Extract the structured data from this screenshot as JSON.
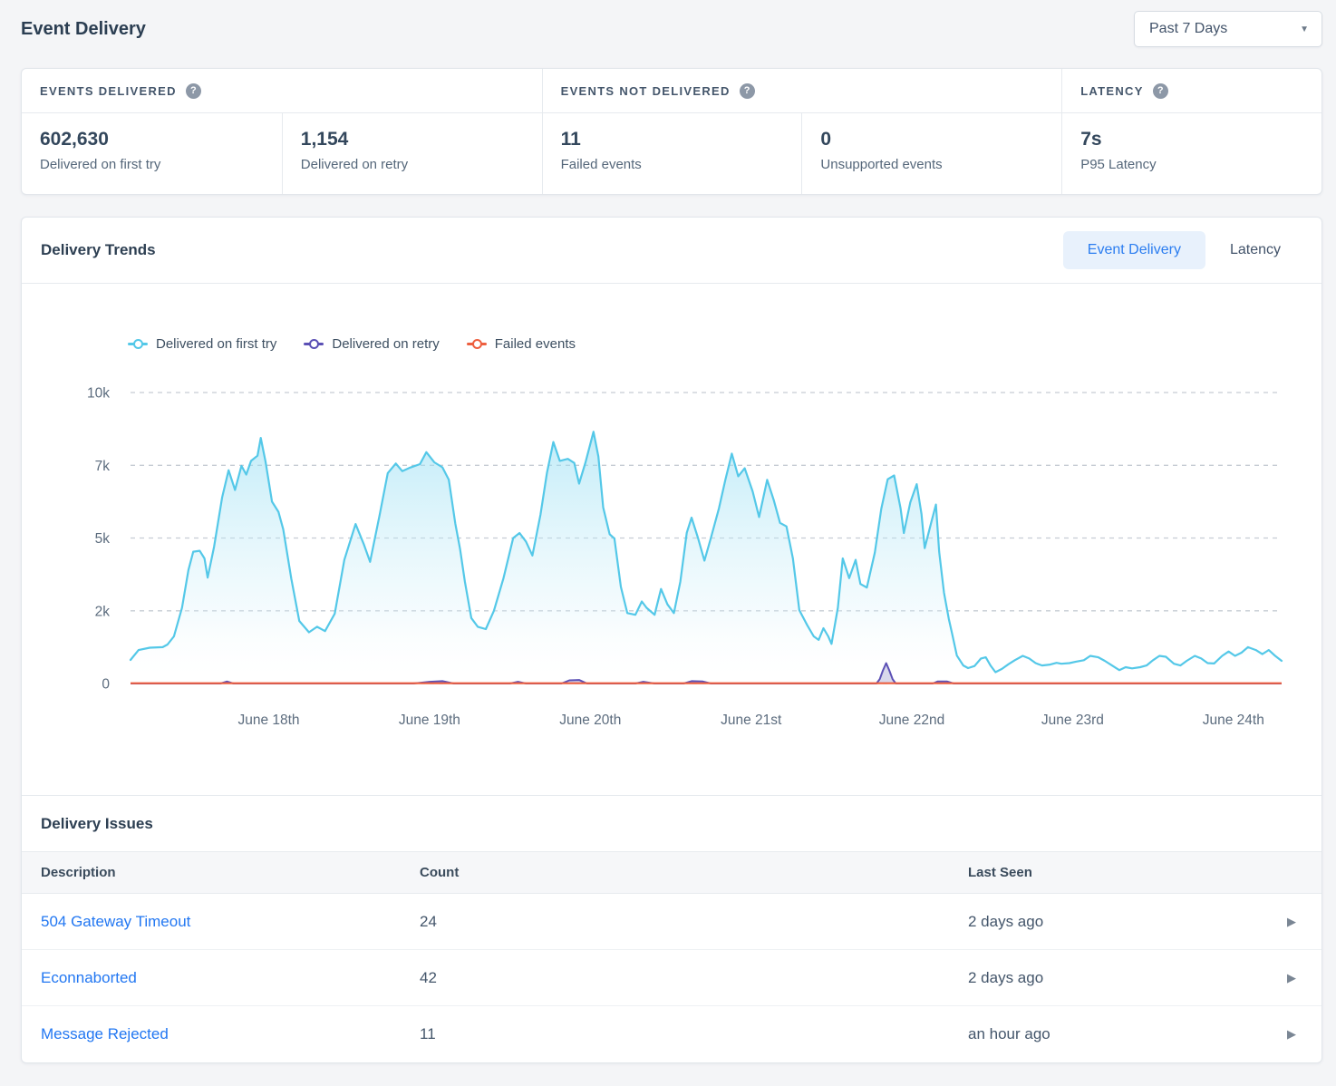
{
  "page": {
    "title": "Event Delivery"
  },
  "icons": {
    "help": "?",
    "caret": "▼",
    "chevron_right": "▶"
  },
  "time_range": {
    "selected": "Past 7 Days"
  },
  "stats": {
    "groups": [
      {
        "label": "EVENTS DELIVERED"
      },
      {
        "label": "EVENTS NOT DELIVERED"
      },
      {
        "label": "LATENCY"
      }
    ],
    "metrics": [
      {
        "value": "602,630",
        "label": "Delivered on first try"
      },
      {
        "value": "1,154",
        "label": "Delivered on retry"
      },
      {
        "value": "11",
        "label": "Failed events"
      },
      {
        "value": "0",
        "label": "Unsupported events"
      },
      {
        "value": "7s",
        "label": "P95 Latency"
      }
    ]
  },
  "trends": {
    "title": "Delivery Trends",
    "tabs": [
      {
        "label": "Event Delivery",
        "active": true
      },
      {
        "label": "Latency",
        "active": false
      }
    ],
    "legend": [
      {
        "label": "Delivered on first try",
        "color": "#54c8e8"
      },
      {
        "label": "Delivered on retry",
        "color": "#5b50b5"
      },
      {
        "label": "Failed events",
        "color": "#ed5f3f"
      }
    ]
  },
  "chart_data": {
    "type": "area",
    "title": "Delivery Trends",
    "x_axis": {
      "labels": [
        "June 18th",
        "June 19th",
        "June 20th",
        "June 21st",
        "June 22nd",
        "June 23rd",
        "June 24th"
      ],
      "positions_day": [
        18,
        19,
        20,
        21,
        22,
        23,
        24
      ]
    },
    "y_axis": {
      "ticks": [
        0,
        2500,
        5000,
        7500,
        10000
      ],
      "tick_labels": [
        "0",
        "2k",
        "5k",
        "7k",
        "10k"
      ],
      "range": [
        0,
        10000
      ]
    },
    "x_range_days": [
      17.14,
      24.3
    ],
    "grid": "dashed-horizontal",
    "legend_position": "top-left",
    "series": [
      {
        "name": "Delivered on first try",
        "color": "#54c8e8",
        "fill": "gradient-cyan",
        "points": [
          [
            17.14,
            810
          ],
          [
            17.19,
            1150
          ],
          [
            17.26,
            1230
          ],
          [
            17.34,
            1250
          ],
          [
            17.37,
            1340
          ],
          [
            17.41,
            1620
          ],
          [
            17.46,
            2600
          ],
          [
            17.5,
            3900
          ],
          [
            17.53,
            4530
          ],
          [
            17.57,
            4560
          ],
          [
            17.6,
            4300
          ],
          [
            17.62,
            3640
          ],
          [
            17.66,
            4700
          ],
          [
            17.71,
            6400
          ],
          [
            17.75,
            7330
          ],
          [
            17.79,
            6650
          ],
          [
            17.83,
            7480
          ],
          [
            17.86,
            7180
          ],
          [
            17.89,
            7650
          ],
          [
            17.93,
            7830
          ],
          [
            17.95,
            8440
          ],
          [
            17.98,
            7620
          ],
          [
            18.02,
            6250
          ],
          [
            18.06,
            5900
          ],
          [
            18.09,
            5300
          ],
          [
            18.14,
            3600
          ],
          [
            18.19,
            2150
          ],
          [
            18.25,
            1760
          ],
          [
            18.3,
            1950
          ],
          [
            18.35,
            1800
          ],
          [
            18.41,
            2400
          ],
          [
            18.47,
            4250
          ],
          [
            18.54,
            5480
          ],
          [
            18.59,
            4800
          ],
          [
            18.63,
            4180
          ],
          [
            18.69,
            5800
          ],
          [
            18.74,
            7230
          ],
          [
            18.79,
            7560
          ],
          [
            18.83,
            7300
          ],
          [
            18.88,
            7420
          ],
          [
            18.94,
            7540
          ],
          [
            18.98,
            7950
          ],
          [
            19.03,
            7600
          ],
          [
            19.08,
            7430
          ],
          [
            19.12,
            7000
          ],
          [
            19.16,
            5500
          ],
          [
            19.19,
            4620
          ],
          [
            19.22,
            3500
          ],
          [
            19.26,
            2250
          ],
          [
            19.3,
            1950
          ],
          [
            19.35,
            1870
          ],
          [
            19.4,
            2500
          ],
          [
            19.46,
            3620
          ],
          [
            19.52,
            5000
          ],
          [
            19.56,
            5170
          ],
          [
            19.6,
            4880
          ],
          [
            19.64,
            4400
          ],
          [
            19.69,
            5800
          ],
          [
            19.73,
            7230
          ],
          [
            19.77,
            8300
          ],
          [
            19.81,
            7650
          ],
          [
            19.86,
            7720
          ],
          [
            19.9,
            7580
          ],
          [
            19.93,
            6870
          ],
          [
            19.97,
            7600
          ],
          [
            20.02,
            8650
          ],
          [
            20.05,
            7800
          ],
          [
            20.08,
            6050
          ],
          [
            20.12,
            5130
          ],
          [
            20.15,
            4980
          ],
          [
            20.19,
            3320
          ],
          [
            20.23,
            2420
          ],
          [
            20.28,
            2360
          ],
          [
            20.32,
            2820
          ],
          [
            20.35,
            2600
          ],
          [
            20.4,
            2360
          ],
          [
            20.44,
            3250
          ],
          [
            20.48,
            2720
          ],
          [
            20.52,
            2420
          ],
          [
            20.56,
            3500
          ],
          [
            20.6,
            5180
          ],
          [
            20.63,
            5700
          ],
          [
            20.67,
            5000
          ],
          [
            20.71,
            4220
          ],
          [
            20.75,
            5000
          ],
          [
            20.8,
            6020
          ],
          [
            20.84,
            7000
          ],
          [
            20.88,
            7900
          ],
          [
            20.92,
            7120
          ],
          [
            20.96,
            7400
          ],
          [
            21.01,
            6600
          ],
          [
            21.05,
            5720
          ],
          [
            21.1,
            7000
          ],
          [
            21.14,
            6320
          ],
          [
            21.18,
            5520
          ],
          [
            21.22,
            5400
          ],
          [
            21.26,
            4300
          ],
          [
            21.3,
            2520
          ],
          [
            21.35,
            2000
          ],
          [
            21.39,
            1620
          ],
          [
            21.42,
            1500
          ],
          [
            21.45,
            1900
          ],
          [
            21.48,
            1620
          ],
          [
            21.5,
            1360
          ],
          [
            21.54,
            2600
          ],
          [
            21.57,
            4300
          ],
          [
            21.61,
            3620
          ],
          [
            21.65,
            4250
          ],
          [
            21.68,
            3420
          ],
          [
            21.72,
            3300
          ],
          [
            21.77,
            4500
          ],
          [
            21.81,
            6000
          ],
          [
            21.85,
            7020
          ],
          [
            21.89,
            7150
          ],
          [
            21.93,
            6020
          ],
          [
            21.95,
            5170
          ],
          [
            21.99,
            6220
          ],
          [
            22.03,
            6850
          ],
          [
            22.06,
            5820
          ],
          [
            22.08,
            4650
          ],
          [
            22.12,
            5520
          ],
          [
            22.15,
            6150
          ],
          [
            22.17,
            4520
          ],
          [
            22.2,
            3120
          ],
          [
            22.23,
            2220
          ],
          [
            22.25,
            1720
          ],
          [
            22.28,
            960
          ],
          [
            22.32,
            620
          ],
          [
            22.35,
            530
          ],
          [
            22.39,
            600
          ],
          [
            22.43,
            860
          ],
          [
            22.46,
            900
          ],
          [
            22.49,
            610
          ],
          [
            22.52,
            390
          ],
          [
            22.56,
            500
          ],
          [
            22.6,
            660
          ],
          [
            22.64,
            800
          ],
          [
            22.69,
            950
          ],
          [
            22.73,
            860
          ],
          [
            22.77,
            700
          ],
          [
            22.81,
            620
          ],
          [
            22.86,
            650
          ],
          [
            22.9,
            710
          ],
          [
            22.93,
            680
          ],
          [
            22.98,
            700
          ],
          [
            23.02,
            750
          ],
          [
            23.07,
            800
          ],
          [
            23.11,
            950
          ],
          [
            23.16,
            900
          ],
          [
            23.2,
            780
          ],
          [
            23.25,
            600
          ],
          [
            23.29,
            460
          ],
          [
            23.33,
            560
          ],
          [
            23.37,
            520
          ],
          [
            23.42,
            560
          ],
          [
            23.46,
            620
          ],
          [
            23.5,
            800
          ],
          [
            23.54,
            950
          ],
          [
            23.58,
            920
          ],
          [
            23.63,
            680
          ],
          [
            23.67,
            620
          ],
          [
            23.71,
            780
          ],
          [
            23.76,
            950
          ],
          [
            23.8,
            860
          ],
          [
            23.84,
            700
          ],
          [
            23.88,
            690
          ],
          [
            23.93,
            950
          ],
          [
            23.97,
            1100
          ],
          [
            24.01,
            950
          ],
          [
            24.05,
            1060
          ],
          [
            24.09,
            1250
          ],
          [
            24.14,
            1150
          ],
          [
            24.18,
            1010
          ],
          [
            24.22,
            1150
          ],
          [
            24.26,
            950
          ],
          [
            24.3,
            780
          ]
        ]
      },
      {
        "name": "Delivered on retry",
        "color": "#5b50b5",
        "fill": "light-lavender",
        "points": [
          [
            17.14,
            0
          ],
          [
            17.7,
            0
          ],
          [
            17.74,
            70
          ],
          [
            17.78,
            0
          ],
          [
            18.9,
            0
          ],
          [
            19.0,
            60
          ],
          [
            19.08,
            80
          ],
          [
            19.15,
            0
          ],
          [
            19.5,
            0
          ],
          [
            19.55,
            60
          ],
          [
            19.6,
            0
          ],
          [
            19.82,
            0
          ],
          [
            19.87,
            110
          ],
          [
            19.93,
            120
          ],
          [
            19.98,
            0
          ],
          [
            20.28,
            0
          ],
          [
            20.33,
            60
          ],
          [
            20.4,
            0
          ],
          [
            20.58,
            0
          ],
          [
            20.63,
            80
          ],
          [
            20.7,
            70
          ],
          [
            20.75,
            0
          ],
          [
            21.78,
            0
          ],
          [
            21.8,
            150
          ],
          [
            21.82,
            450
          ],
          [
            21.84,
            700
          ],
          [
            21.86,
            450
          ],
          [
            21.88,
            150
          ],
          [
            21.9,
            0
          ],
          [
            22.13,
            0
          ],
          [
            22.16,
            70
          ],
          [
            22.22,
            70
          ],
          [
            22.26,
            0
          ],
          [
            24.3,
            0
          ]
        ]
      },
      {
        "name": "Failed events",
        "color": "#ed5f3f",
        "fill": "none",
        "points": [
          [
            17.14,
            10
          ],
          [
            24.3,
            10
          ]
        ]
      }
    ]
  },
  "issues": {
    "title": "Delivery Issues",
    "columns": [
      "Description",
      "Count",
      "Last Seen"
    ],
    "rows": [
      {
        "description": "504 Gateway Timeout",
        "count": "24",
        "last_seen": "2 days ago"
      },
      {
        "description": "Econnaborted",
        "count": "42",
        "last_seen": "2 days ago"
      },
      {
        "description": "Message Rejected",
        "count": "11",
        "last_seen": "an hour ago"
      }
    ]
  },
  "colors": {
    "page_bg": "#f4f5f7",
    "card_bg": "#ffffff",
    "border": "#e6eaee",
    "accent_blue": "#2b7df0",
    "link_blue": "#2277f2",
    "series_first_try": "#54c8e8",
    "series_retry": "#5b50b5",
    "series_failed": "#ed5f3f"
  }
}
